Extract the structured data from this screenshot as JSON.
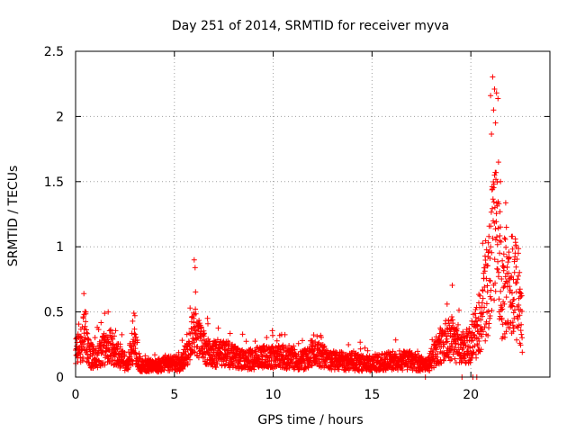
{
  "chart_data": {
    "type": "scatter",
    "title": "Day 251 of 2014, SRMTID for receiver myva",
    "xlabel": "GPS time / hours",
    "ylabel": "SRMTID / TECUs",
    "xlim": [
      0,
      24
    ],
    "ylim": [
      0,
      2.5
    ],
    "x_ticks": [
      0,
      5,
      10,
      15,
      20
    ],
    "y_ticks": [
      0,
      0.5,
      1,
      1.5,
      2,
      2.5
    ],
    "x_tick_labels": [
      "0",
      "5",
      "10",
      "15",
      "20"
    ],
    "y_tick_labels": [
      "0",
      "0.5",
      "1",
      "1.5",
      "2",
      "2.5"
    ],
    "grid": true,
    "marker": "+",
    "series": [
      {
        "name": "SRMTID",
        "color": "#ff0000",
        "profile": [
          [
            0.0,
            0.22
          ],
          [
            0.3,
            0.28
          ],
          [
            0.45,
            0.45
          ],
          [
            0.7,
            0.18
          ],
          [
            1.2,
            0.2
          ],
          [
            1.7,
            0.3
          ],
          [
            2.2,
            0.2
          ],
          [
            2.6,
            0.12
          ],
          [
            2.95,
            0.3
          ],
          [
            3.3,
            0.1
          ],
          [
            4.0,
            0.1
          ],
          [
            4.7,
            0.12
          ],
          [
            5.3,
            0.12
          ],
          [
            5.7,
            0.22
          ],
          [
            6.0,
            0.45
          ],
          [
            6.3,
            0.3
          ],
          [
            6.8,
            0.2
          ],
          [
            7.5,
            0.22
          ],
          [
            8.5,
            0.15
          ],
          [
            9.5,
            0.18
          ],
          [
            10.5,
            0.18
          ],
          [
            11.5,
            0.15
          ],
          [
            12.3,
            0.22
          ],
          [
            12.8,
            0.15
          ],
          [
            14.0,
            0.14
          ],
          [
            15.0,
            0.12
          ],
          [
            16.0,
            0.15
          ],
          [
            17.0,
            0.15
          ],
          [
            17.8,
            0.1
          ],
          [
            18.5,
            0.3
          ],
          [
            19.0,
            0.35
          ],
          [
            19.5,
            0.25
          ],
          [
            20.0,
            0.3
          ],
          [
            20.5,
            0.5
          ],
          [
            20.9,
            0.85
          ],
          [
            21.15,
            1.35
          ],
          [
            21.35,
            1.25
          ],
          [
            21.6,
            0.7
          ],
          [
            22.0,
            0.85
          ],
          [
            22.4,
            0.75
          ],
          [
            22.6,
            0.45
          ]
        ],
        "peaks": [
          [
            0.42,
            0.64
          ],
          [
            1.65,
            0.5
          ],
          [
            2.95,
            0.49
          ],
          [
            6.0,
            0.9
          ],
          [
            6.05,
            0.84
          ],
          [
            12.4,
            0.32
          ],
          [
            18.8,
            0.56
          ],
          [
            20.4,
            0.57
          ],
          [
            21.0,
            1.0
          ],
          [
            21.15,
            2.05
          ],
          [
            21.2,
            2.21
          ],
          [
            21.3,
            2.18
          ],
          [
            21.25,
            1.95
          ],
          [
            21.4,
            1.65
          ],
          [
            21.5,
            1.5
          ],
          [
            21.8,
            1.15
          ],
          [
            22.1,
            1.08
          ],
          [
            22.4,
            0.95
          ],
          [
            19.55,
            0.0
          ],
          [
            20.1,
            0.0
          ],
          [
            20.3,
            0.0
          ],
          [
            17.7,
            0.0
          ]
        ],
        "point_count": 2600,
        "seed": 251
      }
    ]
  }
}
